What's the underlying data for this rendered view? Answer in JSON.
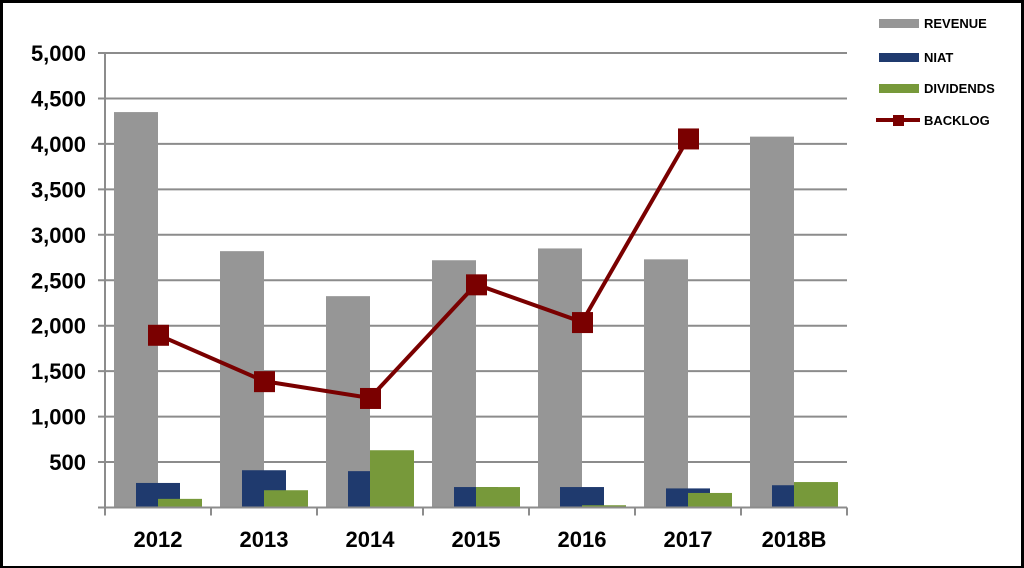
{
  "chart_data": {
    "type": "bar",
    "title": "",
    "xlabel": "",
    "ylabel": "",
    "ylim": [
      0,
      5000
    ],
    "yticks": [
      500,
      1000,
      1500,
      2000,
      2500,
      3000,
      3500,
      4000,
      4500,
      5000
    ],
    "ytick_labels": [
      "500",
      "1,000",
      "1,500",
      "2,000",
      "2,500",
      "3,000",
      "3,500",
      "4,000",
      "4,500",
      "5,000"
    ],
    "grid": true,
    "legend_position": "top-right",
    "categories": [
      "2012",
      "2013",
      "2014",
      "2015",
      "2016",
      "2017",
      "2018B"
    ],
    "series": [
      {
        "name": "REVENUE",
        "type": "bar",
        "color": "#969696",
        "values": [
          4350,
          2820,
          2325,
          2720,
          2850,
          2730,
          4080
        ]
      },
      {
        "name": "NIAT",
        "type": "bar",
        "color": "#1F3A6E",
        "values": [
          270,
          410,
          400,
          225,
          225,
          210,
          245
        ]
      },
      {
        "name": "DIVIDENDS",
        "type": "bar",
        "color": "#77993A",
        "values": [
          95,
          190,
          630,
          225,
          25,
          160,
          280
        ]
      },
      {
        "name": "BACKLOG",
        "type": "line",
        "color": "#7A0000",
        "marker": "square",
        "values": [
          1900,
          1390,
          1205,
          2455,
          2040,
          4060,
          null
        ]
      }
    ]
  }
}
